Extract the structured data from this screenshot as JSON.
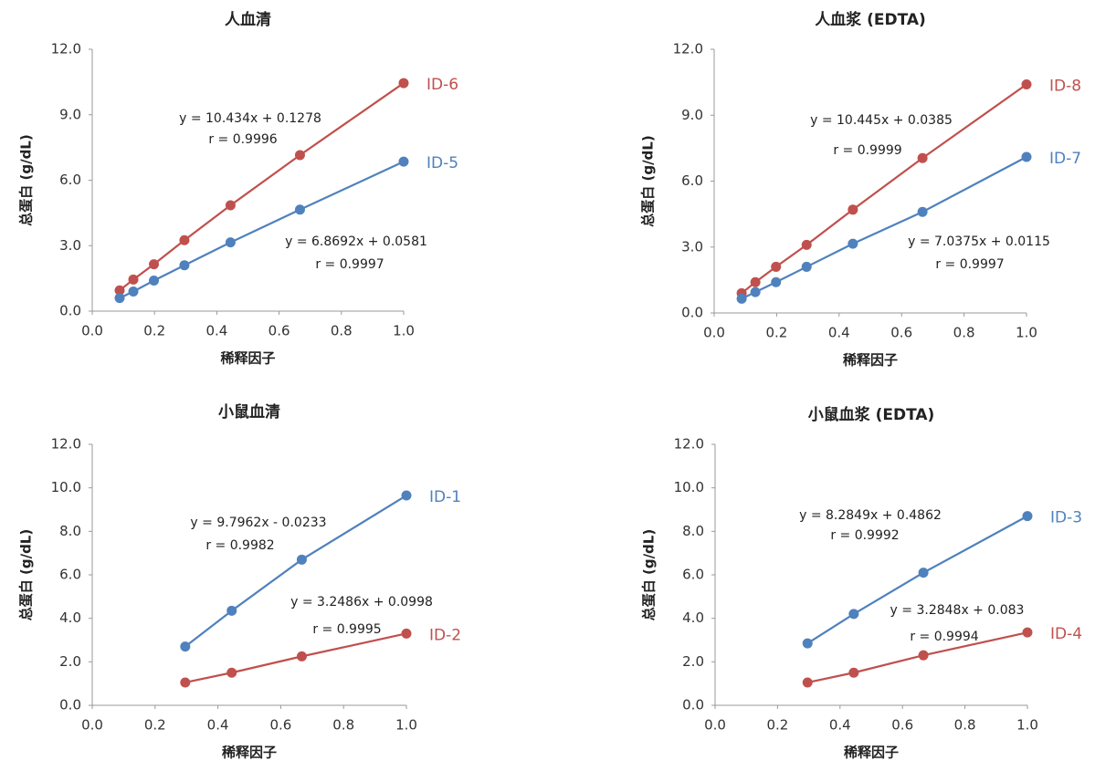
{
  "chart_data": [
    {
      "type": "scatter",
      "title": "人血清",
      "x_label": "稀释因子",
      "y_label": "总蛋白 (g/dL)",
      "x": [
        0.088,
        0.132,
        0.198,
        0.296,
        0.444,
        0.667,
        1.0
      ],
      "xlim": [
        0,
        1
      ],
      "ylim": [
        0,
        12
      ],
      "xticks": [
        {
          "value": 0,
          "label": "0.0"
        },
        0.2,
        0.4,
        0.6,
        0.8,
        {
          "value": 1,
          "label": "1.0"
        }
      ],
      "yticks": [
        {
          "value": 0,
          "label": "0.0"
        },
        {
          "value": 3,
          "label": "3.0"
        },
        {
          "value": 6,
          "label": "6.0"
        },
        {
          "value": 9,
          "label": "9.0"
        },
        {
          "value": 12,
          "label": "12.0"
        }
      ],
      "series": [
        {
          "name": "ID-6",
          "color": "#c0504d",
          "y": [
            0.95,
            1.45,
            2.15,
            3.25,
            4.85,
            7.15,
            10.45
          ],
          "equation": "y = 10.434x + 0.1278",
          "r": "r = 0.9996"
        },
        {
          "name": "ID-5",
          "color": "#4f81bd",
          "y": [
            0.6,
            0.9,
            1.4,
            2.1,
            3.15,
            4.65,
            6.85
          ],
          "equation": "y = 6.8692x + 0.0581",
          "r": "r = 0.9997"
        }
      ]
    },
    {
      "type": "scatter",
      "title": "人血浆 (EDTA)",
      "x_label": "稀释因子",
      "y_label": "总蛋白 (g/dL)",
      "x": [
        0.088,
        0.132,
        0.198,
        0.296,
        0.444,
        0.667,
        1.0
      ],
      "xlim": [
        0,
        1
      ],
      "ylim": [
        0,
        12
      ],
      "xticks": [
        {
          "value": 0,
          "label": "0.0"
        },
        0.2,
        0.4,
        0.6,
        0.8,
        {
          "value": 1,
          "label": "1.0"
        }
      ],
      "yticks": [
        {
          "value": 0,
          "label": "0.0"
        },
        {
          "value": 3,
          "label": "3.0"
        },
        {
          "value": 6,
          "label": "6.0"
        },
        {
          "value": 9,
          "label": "9.0"
        },
        {
          "value": 12,
          "label": "12.0"
        }
      ],
      "series": [
        {
          "name": "ID-8",
          "color": "#c0504d",
          "y": [
            0.9,
            1.4,
            2.1,
            3.1,
            4.7,
            7.05,
            10.4
          ],
          "equation": "y = 10.445x + 0.0385",
          "r": "r = 0.9999"
        },
        {
          "name": "ID-7",
          "color": "#4f81bd",
          "y": [
            0.65,
            0.95,
            1.4,
            2.1,
            3.15,
            4.6,
            7.1
          ],
          "equation": "y = 7.0375x + 0.0115",
          "r": "r = 0.9997"
        }
      ]
    },
    {
      "type": "scatter",
      "title": "小鼠血清",
      "x_label": "稀释因子",
      "y_label": "总蛋白 (g/dL)",
      "x": [
        0.296,
        0.444,
        0.667,
        1.0
      ],
      "xlim": [
        0,
        1
      ],
      "ylim": [
        0,
        12
      ],
      "xticks": [
        {
          "value": 0,
          "label": "0.0"
        },
        0.2,
        0.4,
        0.6,
        0.8,
        {
          "value": 1,
          "label": "1.0"
        }
      ],
      "yticks": [
        {
          "value": 0,
          "label": "0.0"
        },
        {
          "value": 2,
          "label": "2.0"
        },
        {
          "value": 4,
          "label": "4.0"
        },
        {
          "value": 6,
          "label": "6.0"
        },
        {
          "value": 8,
          "label": "8.0"
        },
        {
          "value": 10,
          "label": "10.0"
        },
        {
          "value": 12,
          "label": "12.0"
        }
      ],
      "series": [
        {
          "name": "ID-1",
          "color": "#4f81bd",
          "y": [
            2.7,
            4.35,
            6.7,
            9.65
          ],
          "equation": "y = 9.7962x - 0.0233",
          "r": "r = 0.9982"
        },
        {
          "name": "ID-2",
          "color": "#c0504d",
          "y": [
            1.05,
            1.5,
            2.25,
            3.3
          ],
          "equation": "y = 3.2486x + 0.0998",
          "r": "r = 0.9995"
        }
      ]
    },
    {
      "type": "scatter",
      "title": "小鼠血浆 (EDTA)",
      "x_label": "稀释因子",
      "y_label": "总蛋白 (g/dL)",
      "x": [
        0.296,
        0.444,
        0.667,
        1.0
      ],
      "xlim": [
        0,
        1
      ],
      "ylim": [
        0,
        12
      ],
      "xticks": [
        {
          "value": 0,
          "label": "0.0"
        },
        0.2,
        0.4,
        0.6,
        0.8,
        {
          "value": 1,
          "label": "1.0"
        }
      ],
      "yticks": [
        {
          "value": 0,
          "label": "0.0"
        },
        {
          "value": 2,
          "label": "2.0"
        },
        {
          "value": 4,
          "label": "4.0"
        },
        {
          "value": 6,
          "label": "6.0"
        },
        {
          "value": 8,
          "label": "8.0"
        },
        {
          "value": 10,
          "label": "10.0"
        },
        {
          "value": 12,
          "label": "12.0"
        }
      ],
      "series": [
        {
          "name": "ID-3",
          "color": "#4f81bd",
          "y": [
            2.85,
            4.2,
            6.1,
            8.7
          ],
          "equation": "y = 8.2849x + 0.4862",
          "r": "r = 0.9992"
        },
        {
          "name": "ID-4",
          "color": "#c0504d",
          "y": [
            1.05,
            1.5,
            2.3,
            3.35
          ],
          "equation": "y = 3.2848x + 0.083",
          "r": "r = 0.9994"
        }
      ]
    }
  ]
}
